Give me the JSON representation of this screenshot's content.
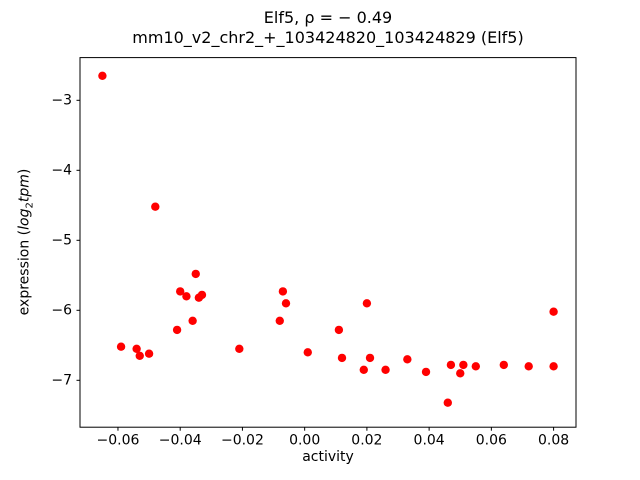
{
  "chart_data": {
    "type": "scatter",
    "title_line1": "Elf5, ρ = − 0.49",
    "title_line2": "mm10_v2_chr2_+_103424820_103424829 (Elf5)",
    "xlabel": "activity",
    "ylabel_parts": {
      "pre": "expression (",
      "italic1": "log",
      "sub": "2",
      "italic2": "tpm",
      "post": ")"
    },
    "marker_color": "#ff0000",
    "grid": false,
    "legend": "none",
    "xlim": [
      -0.0722,
      0.0872
    ],
    "ylim": [
      -7.67,
      -2.39
    ],
    "x_ticks": {
      "values": [
        -0.06,
        -0.04,
        -0.02,
        0.0,
        0.02,
        0.04,
        0.06,
        0.08
      ],
      "labels": [
        "−0.06",
        "−0.04",
        "−0.02",
        "0.00",
        "0.02",
        "0.04",
        "0.06",
        "0.08"
      ]
    },
    "y_ticks": {
      "values": [
        -3,
        -4,
        -5,
        -6,
        -7
      ],
      "labels": [
        "−3",
        "−4",
        "−5",
        "−6",
        "−7"
      ]
    },
    "points": [
      [
        -0.065,
        -2.65
      ],
      [
        -0.059,
        -6.52
      ],
      [
        -0.054,
        -6.55
      ],
      [
        -0.053,
        -6.65
      ],
      [
        -0.05,
        -6.62
      ],
      [
        -0.048,
        -4.52
      ],
      [
        -0.041,
        -6.28
      ],
      [
        -0.04,
        -5.73
      ],
      [
        -0.038,
        -5.8
      ],
      [
        -0.036,
        -6.15
      ],
      [
        -0.035,
        -5.48
      ],
      [
        -0.034,
        -5.82
      ],
      [
        -0.033,
        -5.78
      ],
      [
        -0.021,
        -6.55
      ],
      [
        -0.008,
        -6.15
      ],
      [
        -0.007,
        -5.73
      ],
      [
        -0.006,
        -5.9
      ],
      [
        0.001,
        -6.6
      ],
      [
        0.011,
        -6.28
      ],
      [
        0.012,
        -6.68
      ],
      [
        0.019,
        -6.85
      ],
      [
        0.02,
        -5.9
      ],
      [
        0.021,
        -6.68
      ],
      [
        0.026,
        -6.85
      ],
      [
        0.033,
        -6.7
      ],
      [
        0.039,
        -6.88
      ],
      [
        0.046,
        -7.32
      ],
      [
        0.047,
        -6.78
      ],
      [
        0.05,
        -6.9
      ],
      [
        0.051,
        -6.78
      ],
      [
        0.055,
        -6.8
      ],
      [
        0.064,
        -6.78
      ],
      [
        0.072,
        -6.8
      ],
      [
        0.08,
        -6.02
      ],
      [
        0.08,
        -6.8
      ]
    ]
  }
}
